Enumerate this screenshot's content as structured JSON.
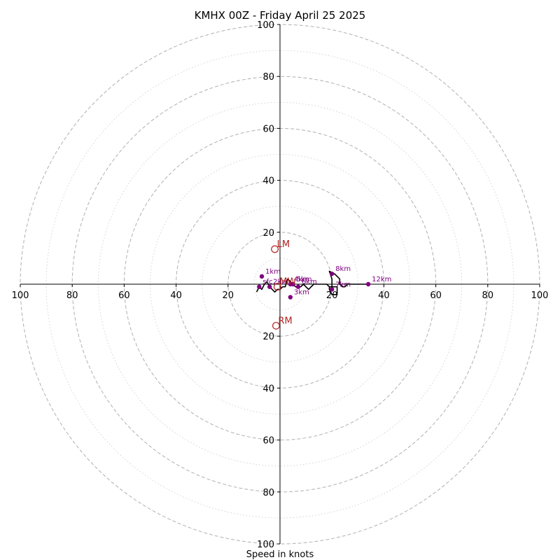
{
  "chart_data": {
    "type": "scatter",
    "title": "KMHX 00Z - Friday April 25 2025",
    "xlabel": "Speed in knots",
    "ylabel": "",
    "xlim": [
      -100,
      100
    ],
    "ylim": [
      -100,
      100
    ],
    "x_ticks": [
      {
        "value": -100,
        "label": "100"
      },
      {
        "value": -80,
        "label": "80"
      },
      {
        "value": -60,
        "label": "60"
      },
      {
        "value": -40,
        "label": "40"
      },
      {
        "value": -20,
        "label": "20"
      },
      {
        "value": 20,
        "label": "20"
      },
      {
        "value": 40,
        "label": "40"
      },
      {
        "value": 60,
        "label": "60"
      },
      {
        "value": 80,
        "label": "80"
      },
      {
        "value": 100,
        "label": "100"
      }
    ],
    "y_ticks": [
      {
        "value": 100,
        "label": "100"
      },
      {
        "value": 80,
        "label": "80"
      },
      {
        "value": 60,
        "label": "60"
      },
      {
        "value": 40,
        "label": "40"
      },
      {
        "value": 20,
        "label": "20"
      },
      {
        "value": -20,
        "label": "20"
      },
      {
        "value": -40,
        "label": "40"
      },
      {
        "value": -60,
        "label": "60"
      },
      {
        "value": -80,
        "label": "80"
      },
      {
        "value": -100,
        "label": "100"
      }
    ],
    "rings_dashed": [
      20,
      40,
      60,
      80,
      100
    ],
    "rings_dotted": [
      10,
      30,
      50,
      70,
      90
    ],
    "grid": true,
    "colors": {
      "trace": "#000000",
      "markers": "#800080",
      "storm_motion": "#b22222",
      "rings": "#b0b0b0"
    },
    "hodograph_line": [
      [
        -9,
        -3
      ],
      [
        -8,
        -1
      ],
      [
        -7,
        -2
      ],
      [
        -6,
        0
      ],
      [
        -5,
        1
      ],
      [
        -4,
        -1
      ],
      [
        -3,
        -2
      ],
      [
        -2,
        -3
      ],
      [
        -1,
        -2
      ],
      [
        0,
        -2
      ],
      [
        1,
        -1
      ],
      [
        2,
        -1
      ],
      [
        3,
        2
      ],
      [
        4,
        1
      ],
      [
        5,
        0
      ],
      [
        6,
        -1
      ],
      [
        7,
        -1
      ],
      [
        8,
        -1
      ],
      [
        9,
        0
      ],
      [
        10,
        -1
      ],
      [
        11,
        -2
      ],
      [
        12,
        -1
      ],
      [
        13,
        0
      ],
      [
        14,
        0
      ],
      [
        16,
        0
      ],
      [
        18,
        0
      ],
      [
        19,
        -1
      ],
      [
        20,
        -1
      ],
      [
        21,
        -1
      ],
      [
        22,
        -1
      ],
      [
        22,
        -2
      ],
      [
        22,
        -4
      ],
      [
        20,
        -4
      ],
      [
        19,
        -2
      ],
      [
        19,
        -1
      ],
      [
        20,
        -1
      ],
      [
        20,
        0
      ],
      [
        20,
        2
      ],
      [
        19,
        5
      ],
      [
        21,
        4
      ],
      [
        22,
        3
      ],
      [
        23,
        2
      ],
      [
        23,
        0
      ],
      [
        24,
        -1
      ],
      [
        25,
        -1
      ],
      [
        26,
        0
      ],
      [
        28,
        0
      ],
      [
        30,
        0
      ],
      [
        34,
        0
      ]
    ],
    "height_markers": [
      {
        "label": "sfc",
        "u": -8,
        "v": -1
      },
      {
        "label": "1km",
        "u": -7,
        "v": 3
      },
      {
        "label": "2km",
        "u": -4,
        "v": -1
      },
      {
        "label": "3km",
        "u": 4,
        "v": -5
      },
      {
        "label": "4km",
        "u": 4,
        "v": 0
      },
      {
        "label": "5km",
        "u": 5,
        "v": 0
      },
      {
        "label": "6km",
        "u": 7,
        "v": -1
      },
      {
        "label": "7km",
        "u": 20,
        "v": -2
      },
      {
        "label": "8km",
        "u": 20,
        "v": 4
      },
      {
        "label": "12km",
        "u": 34,
        "v": 0
      }
    ],
    "storm_motion": [
      {
        "label": "LM",
        "u": -2,
        "v": 13.5
      },
      {
        "label": "RM",
        "u": -1.5,
        "v": -16
      },
      {
        "label": "MW",
        "u": -1,
        "v": -1
      }
    ]
  }
}
